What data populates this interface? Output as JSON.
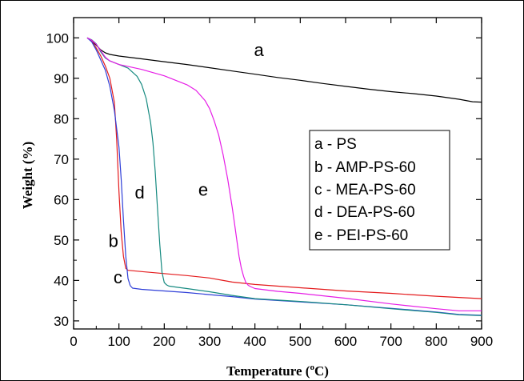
{
  "chart_data": {
    "type": "line",
    "xlabel": "Temperature (",
    "xlabel_sup": "o",
    "xlabel_unit": "C)",
    "ylabel": "Weight (%)",
    "xlim": [
      0,
      900
    ],
    "ylim": [
      28,
      105
    ],
    "xticks": [
      "0",
      "100",
      "200",
      "300",
      "400",
      "500",
      "600",
      "700",
      "800",
      "900"
    ],
    "yticks": [
      "30",
      "40",
      "50",
      "60",
      "70",
      "80",
      "90",
      "100"
    ],
    "grid": false,
    "legend_position": "right",
    "legend": [
      "a - PS",
      "b - AMP-PS-60",
      "c - MEA-PS-60",
      "d - DEA-PS-60",
      "e - PEI-PS-60"
    ],
    "series": [
      {
        "label": "a",
        "color": "#000000",
        "x": [
          30,
          40,
          50,
          60,
          70,
          80,
          100,
          150,
          200,
          250,
          300,
          350,
          400,
          450,
          500,
          550,
          600,
          650,
          700,
          750,
          800,
          850,
          880,
          900
        ],
        "y": [
          100,
          99.2,
          98.2,
          97,
          96.3,
          95.9,
          95.5,
          94.8,
          94.1,
          93.4,
          92.6,
          91.8,
          91,
          90.2,
          89.5,
          88.7,
          88,
          87.3,
          86.7,
          86.2,
          85.6,
          84.8,
          84.2,
          84.1
        ]
      },
      {
        "label": "b",
        "color": "#e41a1c",
        "x": [
          30,
          40,
          50,
          60,
          70,
          80,
          90,
          95,
          100,
          105,
          110,
          115,
          120,
          150,
          200,
          250,
          300,
          330,
          340,
          350,
          400,
          500,
          600,
          700,
          800,
          900
        ],
        "y": [
          100,
          99.2,
          97.5,
          95.5,
          93,
          90,
          84,
          75,
          62,
          52,
          46,
          43,
          42.5,
          42.2,
          41.7,
          41.2,
          40.6,
          40,
          39.8,
          39.6,
          39,
          38.2,
          37.4,
          36.8,
          36.1,
          35.5
        ]
      },
      {
        "label": "c",
        "color": "#2f3fd8",
        "x": [
          30,
          40,
          50,
          60,
          70,
          80,
          90,
          100,
          105,
          110,
          115,
          120,
          125,
          130,
          150,
          200,
          250,
          300,
          350,
          400,
          500,
          600,
          700,
          800,
          850,
          900
        ],
        "y": [
          100,
          99,
          97,
          94.5,
          92,
          88,
          82,
          73,
          65,
          55,
          46,
          40.5,
          38.7,
          38.1,
          37.8,
          37.4,
          37,
          36.5,
          36,
          35.4,
          34.7,
          34,
          33.1,
          32.2,
          31.6,
          31.4
        ]
      },
      {
        "label": "d",
        "color": "#168a80",
        "x": [
          30,
          40,
          50,
          60,
          70,
          80,
          100,
          120,
          140,
          150,
          160,
          170,
          175,
          180,
          185,
          190,
          195,
          200,
          205,
          210,
          230,
          250,
          300,
          350,
          400,
          500,
          600,
          700,
          800,
          850,
          900
        ],
        "y": [
          100,
          99.5,
          98.5,
          96.5,
          95,
          94.3,
          93.4,
          92.5,
          90.5,
          88.5,
          85,
          79,
          74,
          67,
          58,
          49,
          42,
          39.5,
          38.9,
          38.6,
          38.3,
          38,
          37.2,
          36.3,
          35.5,
          34.8,
          34,
          33,
          32.1,
          31.5,
          31.3
        ]
      },
      {
        "label": "e",
        "color": "#e61de6",
        "x": [
          30,
          40,
          50,
          60,
          70,
          80,
          100,
          150,
          200,
          250,
          270,
          290,
          300,
          310,
          320,
          330,
          340,
          350,
          355,
          360,
          365,
          370,
          375,
          380,
          385,
          390,
          400,
          450,
          500,
          600,
          700,
          800,
          850,
          900
        ],
        "y": [
          100,
          99.4,
          98.4,
          96.8,
          95.2,
          94.3,
          93.4,
          92.2,
          90.6,
          88.4,
          87,
          84.5,
          82.5,
          79.5,
          76,
          71,
          65,
          58,
          54,
          50,
          46,
          43,
          41,
          39.5,
          38.8,
          38.5,
          38,
          37.3,
          36.8,
          35.6,
          34.2,
          33,
          32.5,
          32.5
        ]
      }
    ],
    "annotations": [
      {
        "text": "a",
        "x": 398,
        "y": 95.5
      },
      {
        "text": "b",
        "x": 77,
        "y": 48.3
      },
      {
        "text": "c",
        "x": 88,
        "y": 39.3
      },
      {
        "text": "d",
        "x": 135,
        "y": 60.3
      },
      {
        "text": "e",
        "x": 275,
        "y": 61
      }
    ]
  }
}
